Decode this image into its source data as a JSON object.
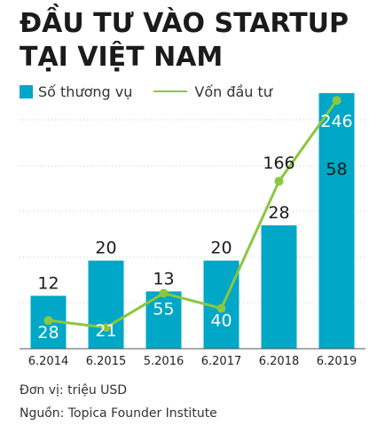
{
  "title_lines": [
    "ĐẦU TƯ VÀO STARTUP",
    "TẠI VIỆT NAM"
  ],
  "colors": {
    "bar": "#00a7c7",
    "line": "#8cc63f",
    "grid": "#c9c9c9",
    "text": "#1a1a1a",
    "inbar_text": "#ffffff"
  },
  "chart_data": {
    "type": "bar",
    "categories": [
      "6.2014",
      "6.2015",
      "5.2016",
      "6.2017",
      "6.2018",
      "6.2019"
    ],
    "series": [
      {
        "name": "Số thương vụ",
        "type": "bar",
        "values": [
          12,
          20,
          13,
          20,
          28,
          58
        ]
      },
      {
        "name": "Vốn đầu tư",
        "type": "line",
        "values": [
          28,
          21,
          55,
          40,
          166,
          246
        ]
      }
    ],
    "legend_position": "top-left",
    "grid": true
  },
  "footer": {
    "unit": "Đơn vị: triệu USD",
    "source": "Nguồn: Topica Founder Institute"
  }
}
